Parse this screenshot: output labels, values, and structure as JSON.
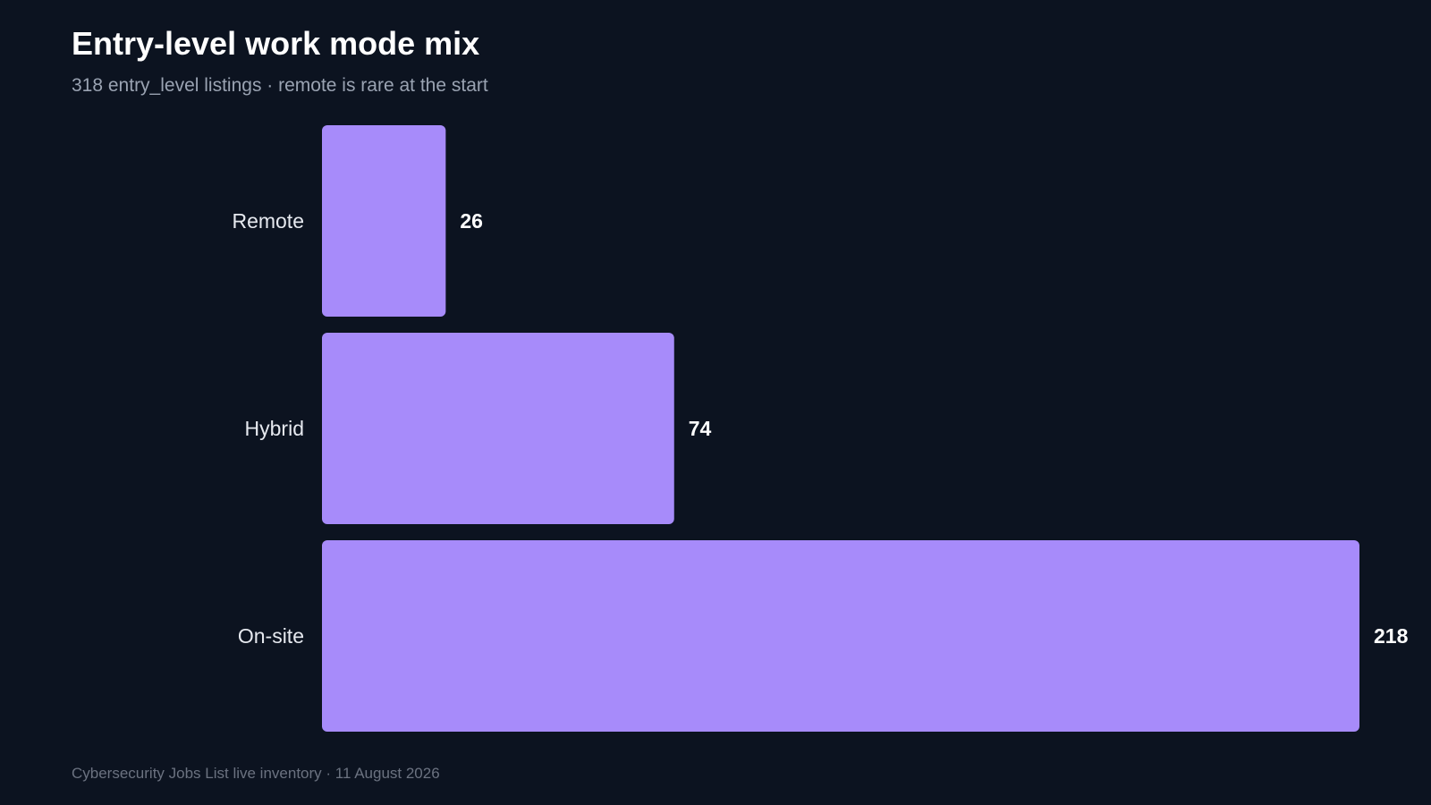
{
  "title": "Entry-level work mode mix",
  "subtitle": "318 entry_level listings · remote is rare at the start",
  "footer": "Cybersecurity Jobs List live inventory · 11 August 2026",
  "colors": {
    "background": "#0c1320",
    "bar": "#a78bfa"
  },
  "chart_data": {
    "type": "bar",
    "orientation": "horizontal",
    "categories": [
      "Remote",
      "Hybrid",
      "On-site"
    ],
    "values": [
      26,
      74,
      218
    ],
    "xlim": [
      0,
      218
    ],
    "grid": false,
    "legend": "none"
  }
}
